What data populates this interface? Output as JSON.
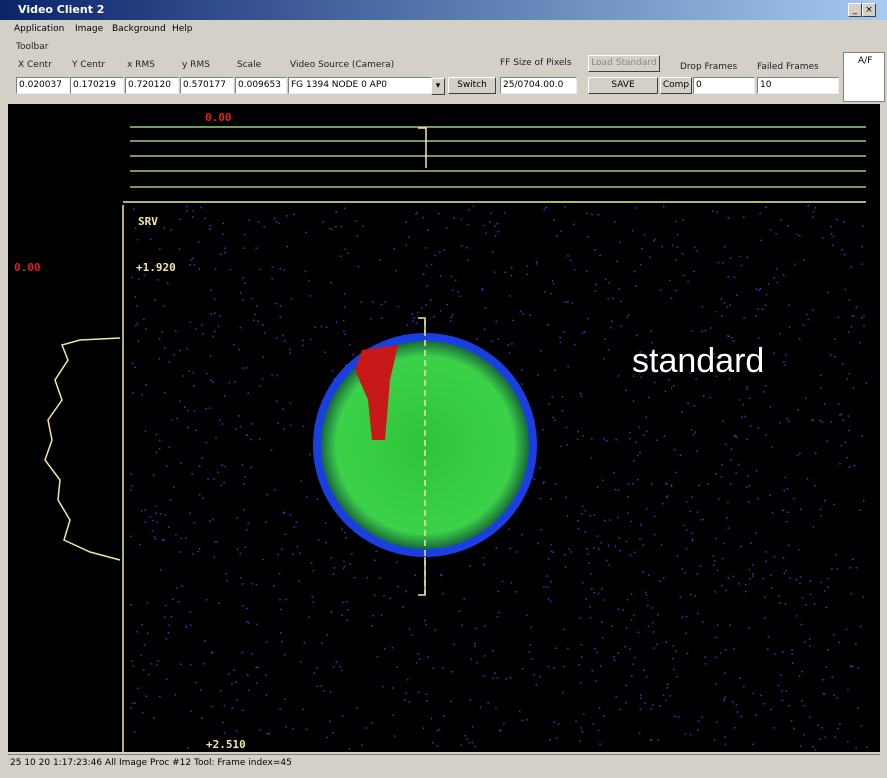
{
  "window": {
    "title": "Video Client 2"
  },
  "menu": [
    "Application",
    "Image",
    "Background",
    "Help"
  ],
  "toolbar": {
    "label": "Toolbar",
    "fields": [
      {
        "label": "X Centr",
        "value": "0.020037"
      },
      {
        "label": "Y Centr",
        "value": "0.170219"
      },
      {
        "label": "x RMS",
        "value": "0.720120"
      },
      {
        "label": "y RMS",
        "value": "0.570177"
      },
      {
        "label": "Scale",
        "value": "0.009653"
      }
    ],
    "source": {
      "label": "Video Source (Camera)",
      "value": "FG 1394 NODE 0 AP0",
      "button": "Switch"
    },
    "pixels": {
      "label": "FF Size of Pixels",
      "value": "25/0704.00.0"
    },
    "load_button": "Load Standard",
    "save_button": "SAVE",
    "comp_button": "Comp",
    "drop": {
      "label": "Drop Frames",
      "value": "0"
    },
    "failed": {
      "label": "Failed Frames",
      "value": "10"
    },
    "corner": "A/F"
  },
  "display": {
    "top_value": "0.00",
    "left_value": "0.00",
    "view_label": "SRV",
    "y_top": "+1.920",
    "y_bottom": "+2.510",
    "annotation": "standard"
  },
  "status": "25 10 20 1:17:23:46 All Image Proc #12 Tool: Frame index=45"
}
